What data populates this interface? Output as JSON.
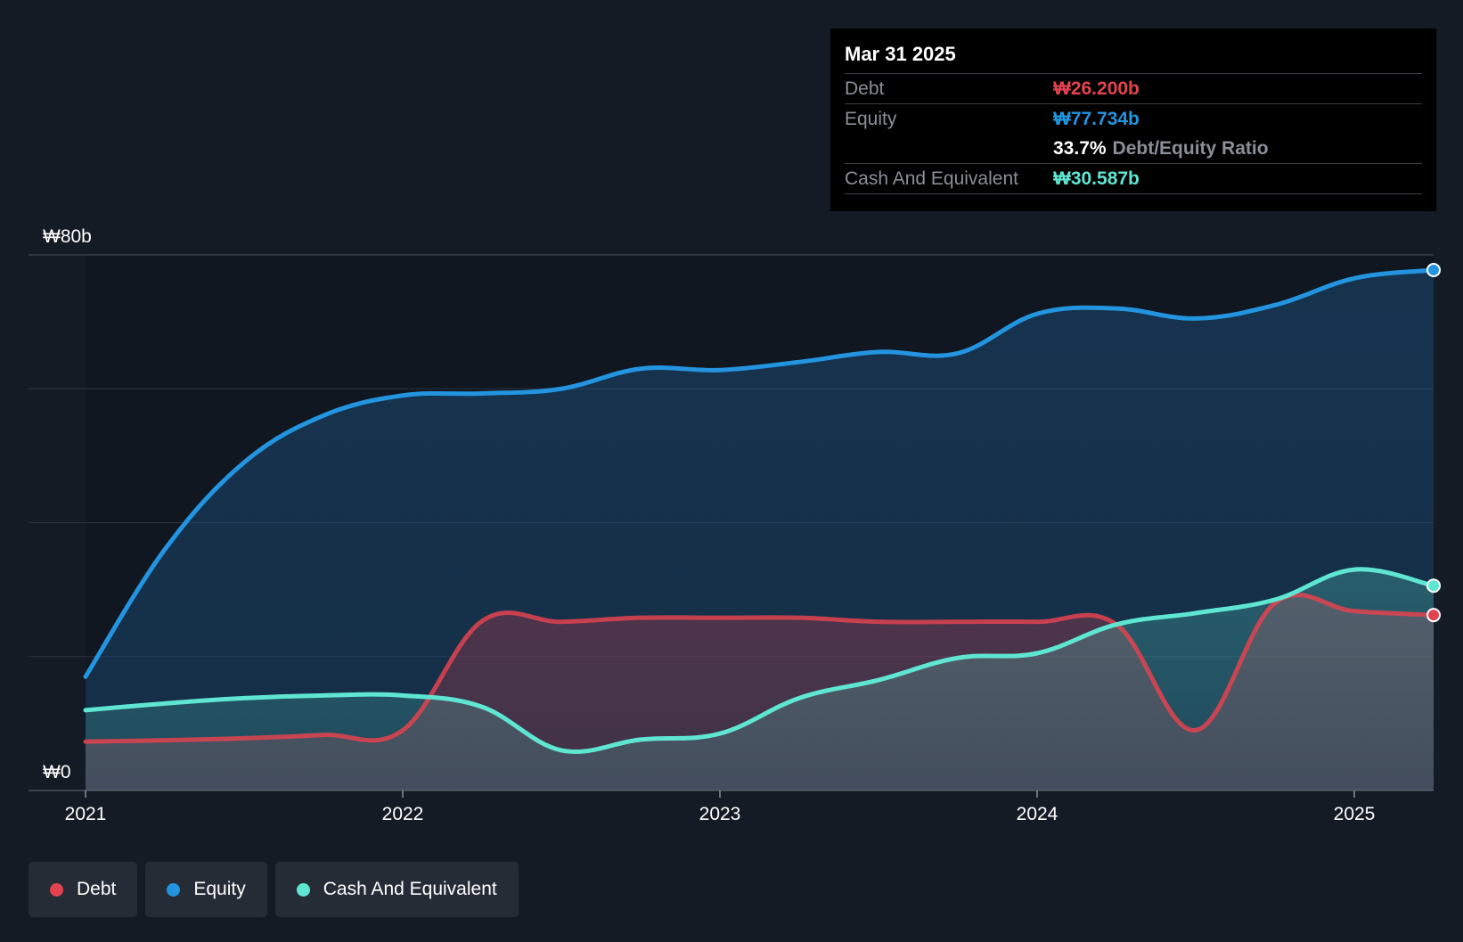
{
  "colors": {
    "debt": "#e2434f",
    "equity": "#2394df",
    "cash": "#5fe6d2",
    "background": "#151b24",
    "grid": "#2c3440"
  },
  "tooltip": {
    "date": "Mar 31 2025",
    "debt_label": "Debt",
    "debt_value": "₩26.200b",
    "equity_label": "Equity",
    "equity_value": "₩77.734b",
    "ratio_value": "33.7%",
    "ratio_label": "Debt/Equity Ratio",
    "cash_label": "Cash And Equivalent",
    "cash_value": "₩30.587b"
  },
  "legend": {
    "debt": "Debt",
    "equity": "Equity",
    "cash": "Cash And Equivalent"
  },
  "chart_data": {
    "type": "area",
    "title": "",
    "xlabel": "",
    "ylabel": "",
    "ylim": [
      0,
      80
    ],
    "xlim": [
      2021.0,
      2025.25
    ],
    "y_unit": "₩ billions",
    "y_tick_labels": [
      {
        "value": 80,
        "label": "₩80b"
      },
      {
        "value": 0,
        "label": "₩0"
      }
    ],
    "gridlines": [
      0,
      20,
      40,
      60,
      80
    ],
    "x_ticks": [
      {
        "value": 2021,
        "label": "2021"
      },
      {
        "value": 2022,
        "label": "2022"
      },
      {
        "value": 2023,
        "label": "2023"
      },
      {
        "value": 2024,
        "label": "2024"
      },
      {
        "value": 2025,
        "label": "2025"
      }
    ],
    "series": [
      {
        "name": "Equity",
        "key": "equity",
        "points": [
          [
            2021.0,
            17.0
          ],
          [
            2021.25,
            36.0
          ],
          [
            2021.5,
            49.0
          ],
          [
            2021.75,
            56.0
          ],
          [
            2022.0,
            59.0
          ],
          [
            2022.25,
            59.3
          ],
          [
            2022.5,
            60.0
          ],
          [
            2022.75,
            63.0
          ],
          [
            2023.0,
            62.8
          ],
          [
            2023.25,
            64.0
          ],
          [
            2023.5,
            65.5
          ],
          [
            2023.75,
            65.3
          ],
          [
            2024.0,
            71.2
          ],
          [
            2024.25,
            72.0
          ],
          [
            2024.5,
            70.5
          ],
          [
            2024.75,
            72.5
          ],
          [
            2025.0,
            76.5
          ],
          [
            2025.25,
            77.734
          ]
        ]
      },
      {
        "name": "Debt",
        "key": "debt",
        "points": [
          [
            2021.0,
            7.3
          ],
          [
            2021.25,
            7.5
          ],
          [
            2021.5,
            7.8
          ],
          [
            2021.75,
            8.3
          ],
          [
            2022.0,
            9.0
          ],
          [
            2022.25,
            25.3
          ],
          [
            2022.5,
            25.2
          ],
          [
            2022.75,
            25.8
          ],
          [
            2023.0,
            25.8
          ],
          [
            2023.25,
            25.8
          ],
          [
            2023.5,
            25.2
          ],
          [
            2023.75,
            25.2
          ],
          [
            2024.0,
            25.2
          ],
          [
            2024.25,
            24.8
          ],
          [
            2024.5,
            9.0
          ],
          [
            2024.75,
            28.0
          ],
          [
            2025.0,
            26.8
          ],
          [
            2025.25,
            26.2
          ]
        ]
      },
      {
        "name": "Cash And Equivalent",
        "key": "cash",
        "points": [
          [
            2021.0,
            12.0
          ],
          [
            2021.25,
            13.0
          ],
          [
            2021.5,
            13.8
          ],
          [
            2021.75,
            14.2
          ],
          [
            2022.0,
            14.2
          ],
          [
            2022.25,
            12.5
          ],
          [
            2022.5,
            6.0
          ],
          [
            2022.75,
            7.6
          ],
          [
            2023.0,
            8.5
          ],
          [
            2023.25,
            13.8
          ],
          [
            2023.5,
            16.5
          ],
          [
            2023.75,
            19.8
          ],
          [
            2024.0,
            20.5
          ],
          [
            2024.25,
            24.8
          ],
          [
            2024.5,
            26.5
          ],
          [
            2024.75,
            28.5
          ],
          [
            2025.0,
            33.0
          ],
          [
            2025.25,
            30.587
          ]
        ]
      }
    ]
  }
}
